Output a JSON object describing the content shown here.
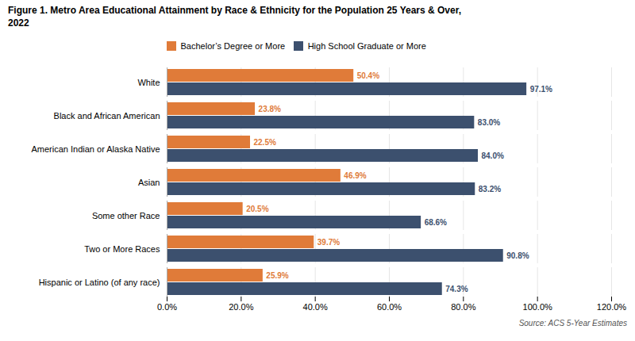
{
  "chart_data": {
    "type": "bar",
    "orientation": "horizontal",
    "title": "Figure 1. Metro Area Educational Attainment by Race & Ethnicity for the Population 25 Years & Over,\n2022",
    "caption": "Source: ACS 5-Year Estimates",
    "categories": [
      "Hispanic or Latino (of any race)",
      "Two or More Races",
      "Some other Race",
      "Asian",
      "American Indian or Alaska Native",
      "Black and African American",
      "White"
    ],
    "series": [
      {
        "name": "Bachelor’s Degree or More",
        "color": "#E07B39",
        "values": [
          25.9,
          39.7,
          20.5,
          46.9,
          22.5,
          23.8,
          50.4
        ],
        "value_labels": [
          "25.9%",
          "39.7%",
          "20.5%",
          "46.9%",
          "22.5%",
          "23.8%",
          "50.4%"
        ]
      },
      {
        "name": "High School Graduate or More",
        "color": "#3C506E",
        "values": [
          74.3,
          90.8,
          68.6,
          83.2,
          84.0,
          83.0,
          97.1
        ],
        "value_labels": [
          "74.3%",
          "90.8%",
          "68.6%",
          "83.2%",
          "84.0%",
          "83.0%",
          "97.1%"
        ]
      }
    ],
    "xlim": [
      0,
      120
    ],
    "xticks": [
      {
        "value": 0,
        "label": "0.0%"
      },
      {
        "value": 20,
        "label": "20.0%"
      },
      {
        "value": 40,
        "label": "40.0%"
      },
      {
        "value": 60,
        "label": "60.0%"
      },
      {
        "value": 80,
        "label": "80.0%"
      },
      {
        "value": 100,
        "label": "100.0%"
      },
      {
        "value": 120,
        "label": "120.0%"
      }
    ],
    "grid": true,
    "legend": "top",
    "data_labels": true
  }
}
